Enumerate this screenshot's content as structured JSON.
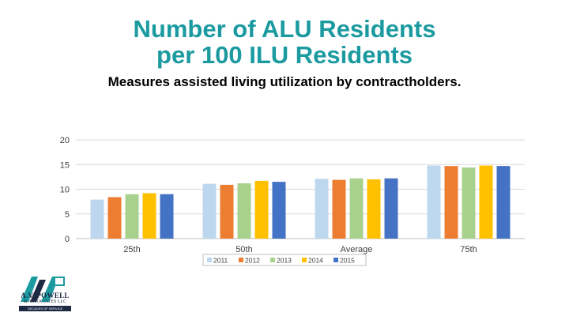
{
  "slide": {
    "title_line1": "Number of ALU Residents",
    "title_line2": "per 100 ILU Residents",
    "subtitle": "Measures assisted living utilization by contractholders."
  },
  "logo": {
    "name": "A.V. POWELL",
    "sub": "& ASSOCIATES LLC",
    "tag": "DECADES OF SERVICE",
    "colors": {
      "teal": "#1b9aa0",
      "navy": "#1d2a44"
    }
  },
  "chart_data": {
    "type": "bar",
    "categories": [
      "25th",
      "50th",
      "Average",
      "75th"
    ],
    "series": [
      {
        "name": "2011",
        "color": "#bdd7ee",
        "values": [
          7.9,
          11.1,
          12.1,
          14.8
        ]
      },
      {
        "name": "2012",
        "color": "#ed7d31",
        "values": [
          8.4,
          10.9,
          11.9,
          14.7
        ]
      },
      {
        "name": "2013",
        "color": "#a9d18e",
        "values": [
          9.0,
          11.2,
          12.2,
          14.4
        ]
      },
      {
        "name": "2014",
        "color": "#ffc000",
        "values": [
          9.2,
          11.7,
          12.0,
          14.8
        ]
      },
      {
        "name": "2015",
        "color": "#4472c4",
        "values": [
          9.0,
          11.5,
          12.2,
          14.7
        ]
      }
    ],
    "ylim": [
      0,
      20
    ],
    "yticks": [
      0,
      5,
      10,
      15,
      20
    ],
    "grid": true,
    "legend_position": "bottom"
  }
}
